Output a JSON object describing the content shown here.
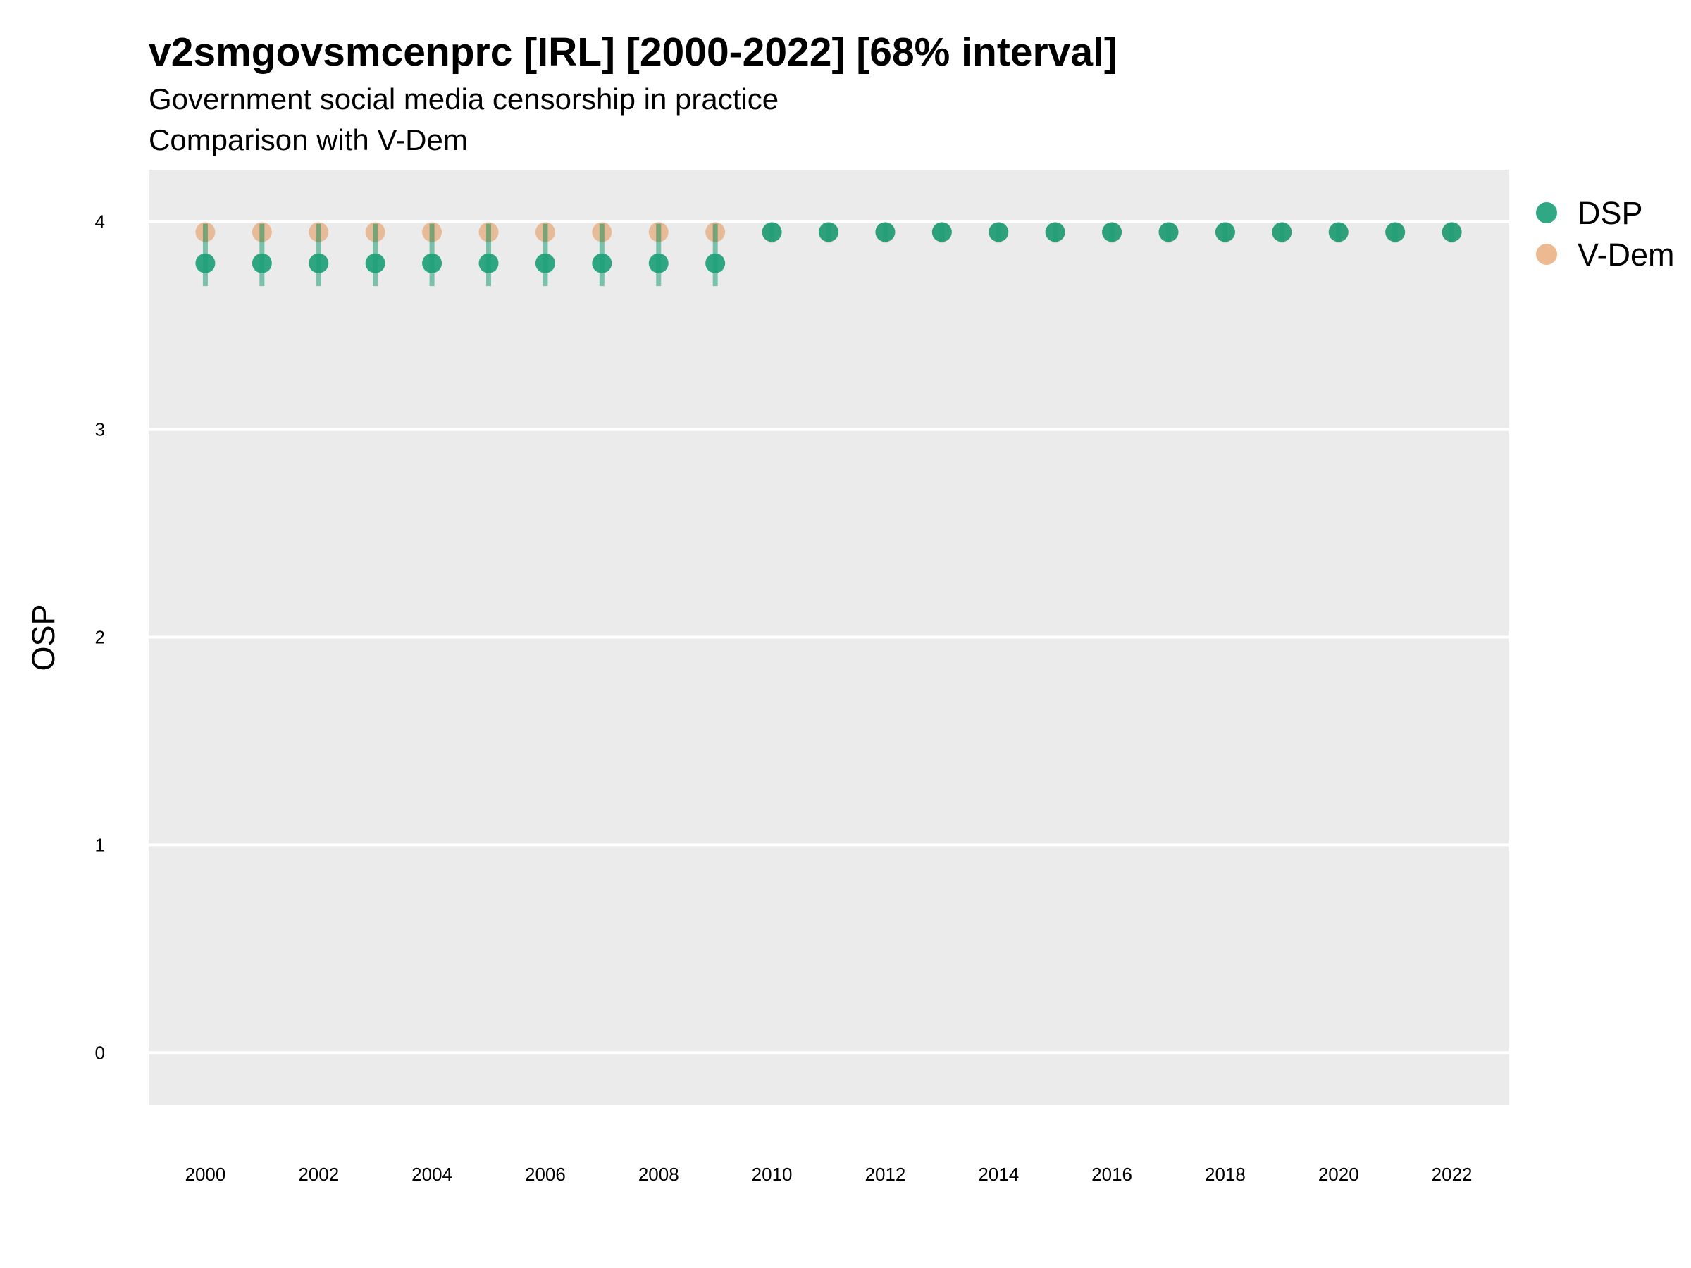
{
  "chart_data": {
    "type": "scatter",
    "title": "v2smgovsmcenprc [IRL] [2000-2022] [68% interval]",
    "subtitle_lines": [
      "Government social media censorship in practice",
      "Comparison with V-Dem"
    ],
    "xlabel": "",
    "ylabel": "OSP",
    "ylim": [
      -0.25,
      4.25
    ],
    "xlim": [
      1999,
      2023
    ],
    "x_ticks": [
      2000,
      2002,
      2004,
      2006,
      2008,
      2010,
      2012,
      2014,
      2016,
      2018,
      2020,
      2022
    ],
    "y_ticks": [
      0,
      1,
      2,
      3,
      4
    ],
    "grid": true,
    "legend_position": "right",
    "series": [
      {
        "name": "DSP",
        "color": "#1b9e77",
        "points": [
          {
            "x": 2000,
            "y": 3.8,
            "lo": 3.69,
            "hi": 3.99
          },
          {
            "x": 2001,
            "y": 3.8,
            "lo": 3.69,
            "hi": 3.99
          },
          {
            "x": 2002,
            "y": 3.8,
            "lo": 3.69,
            "hi": 3.99
          },
          {
            "x": 2003,
            "y": 3.8,
            "lo": 3.69,
            "hi": 3.99
          },
          {
            "x": 2004,
            "y": 3.8,
            "lo": 3.69,
            "hi": 3.99
          },
          {
            "x": 2005,
            "y": 3.8,
            "lo": 3.69,
            "hi": 3.99
          },
          {
            "x": 2006,
            "y": 3.8,
            "lo": 3.69,
            "hi": 3.99
          },
          {
            "x": 2007,
            "y": 3.8,
            "lo": 3.69,
            "hi": 3.99
          },
          {
            "x": 2008,
            "y": 3.8,
            "lo": 3.69,
            "hi": 3.99
          },
          {
            "x": 2009,
            "y": 3.8,
            "lo": 3.69,
            "hi": 3.99
          },
          {
            "x": 2010,
            "y": 3.95,
            "lo": 3.9,
            "hi": 3.99
          },
          {
            "x": 2011,
            "y": 3.95,
            "lo": 3.9,
            "hi": 3.99
          },
          {
            "x": 2012,
            "y": 3.95,
            "lo": 3.9,
            "hi": 3.99
          },
          {
            "x": 2013,
            "y": 3.95,
            "lo": 3.9,
            "hi": 3.99
          },
          {
            "x": 2014,
            "y": 3.95,
            "lo": 3.9,
            "hi": 3.99
          },
          {
            "x": 2015,
            "y": 3.95,
            "lo": 3.9,
            "hi": 3.99
          },
          {
            "x": 2016,
            "y": 3.95,
            "lo": 3.9,
            "hi": 3.99
          },
          {
            "x": 2017,
            "y": 3.95,
            "lo": 3.9,
            "hi": 3.99
          },
          {
            "x": 2018,
            "y": 3.95,
            "lo": 3.9,
            "hi": 3.99
          },
          {
            "x": 2019,
            "y": 3.95,
            "lo": 3.9,
            "hi": 3.99
          },
          {
            "x": 2020,
            "y": 3.95,
            "lo": 3.9,
            "hi": 3.99
          },
          {
            "x": 2021,
            "y": 3.95,
            "lo": 3.9,
            "hi": 3.99
          },
          {
            "x": 2022,
            "y": 3.95,
            "lo": 3.9,
            "hi": 3.99
          }
        ]
      },
      {
        "name": "V-Dem",
        "color": "#e6a26b",
        "points": [
          {
            "x": 2000,
            "y": 3.95,
            "lo": 3.9,
            "hi": 3.99
          },
          {
            "x": 2001,
            "y": 3.95,
            "lo": 3.9,
            "hi": 3.99
          },
          {
            "x": 2002,
            "y": 3.95,
            "lo": 3.9,
            "hi": 3.99
          },
          {
            "x": 2003,
            "y": 3.95,
            "lo": 3.9,
            "hi": 3.99
          },
          {
            "x": 2004,
            "y": 3.95,
            "lo": 3.9,
            "hi": 3.99
          },
          {
            "x": 2005,
            "y": 3.95,
            "lo": 3.9,
            "hi": 3.99
          },
          {
            "x": 2006,
            "y": 3.95,
            "lo": 3.9,
            "hi": 3.99
          },
          {
            "x": 2007,
            "y": 3.95,
            "lo": 3.9,
            "hi": 3.99
          },
          {
            "x": 2008,
            "y": 3.95,
            "lo": 3.9,
            "hi": 3.99
          },
          {
            "x": 2009,
            "y": 3.95,
            "lo": 3.9,
            "hi": 3.99
          },
          {
            "x": 2010,
            "y": 3.95,
            "lo": 3.9,
            "hi": 3.99
          },
          {
            "x": 2011,
            "y": 3.95,
            "lo": 3.9,
            "hi": 3.99
          },
          {
            "x": 2012,
            "y": 3.95,
            "lo": 3.9,
            "hi": 3.99
          },
          {
            "x": 2013,
            "y": 3.95,
            "lo": 3.9,
            "hi": 3.99
          },
          {
            "x": 2014,
            "y": 3.95,
            "lo": 3.9,
            "hi": 3.99
          },
          {
            "x": 2015,
            "y": 3.95,
            "lo": 3.9,
            "hi": 3.99
          },
          {
            "x": 2016,
            "y": 3.95,
            "lo": 3.9,
            "hi": 3.99
          },
          {
            "x": 2017,
            "y": 3.95,
            "lo": 3.9,
            "hi": 3.99
          },
          {
            "x": 2018,
            "y": 3.95,
            "lo": 3.9,
            "hi": 3.99
          },
          {
            "x": 2019,
            "y": 3.95,
            "lo": 3.9,
            "hi": 3.99
          },
          {
            "x": 2020,
            "y": 3.95,
            "lo": 3.9,
            "hi": 3.99
          },
          {
            "x": 2021,
            "y": 3.95,
            "lo": 3.9,
            "hi": 3.99
          },
          {
            "x": 2022,
            "y": 3.95,
            "lo": 3.9,
            "hi": 3.99
          }
        ]
      }
    ]
  }
}
